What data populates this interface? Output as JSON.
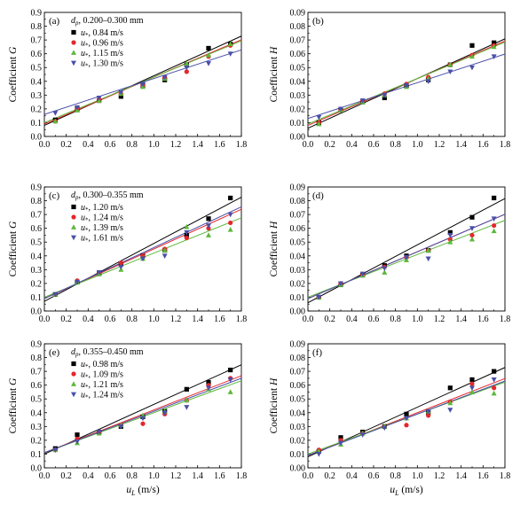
{
  "x_axis_label": "u_L (m/s)",
  "x_axis_label_main": "u",
  "x_axis_label_sub": "L",
  "x_axis_label_unit": " (m/s)",
  "y_label_G": "Coefficient G",
  "y_label_H": "Coefficient H",
  "colors": [
    "#000000",
    "#e5262b",
    "#5cb83b",
    "#4a4fa8"
  ],
  "marker_shapes": [
    "square",
    "circle",
    "triangle-up",
    "triangle-down"
  ],
  "chart_data": [
    {
      "type": "scatter",
      "panel": "(a)",
      "kind": "G",
      "title_prefix": "d",
      "title_sub": "p",
      "title_text": ", 0.200–0.300 mm",
      "xlabel": "",
      "ylabel": "Coefficient G",
      "xlim": [
        0.0,
        1.8
      ],
      "ylim": [
        0.0,
        0.9
      ],
      "xticks": [
        "0.0",
        "0.2",
        "0.4",
        "0.6",
        "0.8",
        "1.0",
        "1.2",
        "1.4",
        "1.6",
        "1.8"
      ],
      "yticks": [
        "0.0",
        "0.1",
        "0.2",
        "0.3",
        "0.4",
        "0.5",
        "0.6",
        "0.7",
        "0.8",
        "0.9"
      ],
      "x": [
        0.1,
        0.3,
        0.5,
        0.7,
        0.9,
        1.1,
        1.3,
        1.5,
        1.7
      ],
      "legend": "top-left",
      "series": [
        {
          "name": "0.84 m/s",
          "values": [
            0.12,
            0.2,
            0.26,
            0.29,
            0.37,
            0.41,
            0.52,
            0.64,
            0.67
          ],
          "fit": [
            0.08,
            0.36
          ]
        },
        {
          "name": "0.96 m/s",
          "values": [
            0.11,
            0.2,
            0.27,
            0.31,
            0.37,
            0.43,
            0.47,
            0.58,
            0.66
          ],
          "fit": [
            0.09,
            0.34
          ]
        },
        {
          "name": "1.15 m/s",
          "values": [
            0.11,
            0.19,
            0.26,
            0.31,
            0.36,
            0.42,
            0.53,
            0.59,
            0.67
          ],
          "fit": [
            0.1,
            0.33
          ]
        },
        {
          "name": "1.30 m/s",
          "values": [
            0.17,
            0.21,
            0.28,
            0.32,
            0.38,
            0.43,
            0.5,
            0.53,
            0.6
          ],
          "fit": [
            0.16,
            0.26
          ]
        }
      ]
    },
    {
      "type": "scatter",
      "panel": "(b)",
      "kind": "H",
      "xlabel": "",
      "ylabel": "Coefficient H",
      "xlim": [
        0.0,
        1.8
      ],
      "ylim": [
        0.0,
        0.09
      ],
      "xticks": [
        "0.0",
        "0.2",
        "0.4",
        "0.6",
        "0.8",
        "1.0",
        "1.2",
        "1.4",
        "1.6",
        "1.8"
      ],
      "yticks": [
        "0.00",
        "0.01",
        "0.02",
        "0.03",
        "0.04",
        "0.05",
        "0.06",
        "0.07",
        "0.08",
        "0.09"
      ],
      "x": [
        0.1,
        0.3,
        0.5,
        0.7,
        0.9,
        1.1,
        1.3,
        1.5,
        1.7
      ],
      "series": [
        {
          "values": [
            0.01,
            0.019,
            0.025,
            0.028,
            0.037,
            0.041,
            0.052,
            0.066,
            0.068
          ],
          "fit": [
            0.006,
            0.036
          ]
        },
        {
          "values": [
            0.01,
            0.019,
            0.026,
            0.031,
            0.038,
            0.043,
            0.052,
            0.059,
            0.066
          ],
          "fit": [
            0.008,
            0.034
          ]
        },
        {
          "values": [
            0.009,
            0.019,
            0.025,
            0.03,
            0.036,
            0.042,
            0.052,
            0.058,
            0.065
          ],
          "fit": [
            0.009,
            0.033
          ]
        },
        {
          "values": [
            0.014,
            0.02,
            0.026,
            0.03,
            0.037,
            0.04,
            0.047,
            0.05,
            0.058
          ],
          "fit": [
            0.013,
            0.026
          ]
        }
      ]
    },
    {
      "type": "scatter",
      "panel": "(c)",
      "kind": "G",
      "title_prefix": "d",
      "title_sub": "p",
      "title_text": ", 0.300–0.355 mm",
      "xlabel": "",
      "ylabel": "Coefficient G",
      "xlim": [
        0.0,
        1.8
      ],
      "ylim": [
        0.0,
        0.9
      ],
      "xticks": [
        "0.0",
        "0.2",
        "0.4",
        "0.6",
        "0.8",
        "1.0",
        "1.2",
        "1.4",
        "1.6",
        "1.8"
      ],
      "yticks": [
        "0.0",
        "0.1",
        "0.2",
        "0.3",
        "0.4",
        "0.5",
        "0.6",
        "0.7",
        "0.8",
        "0.9"
      ],
      "x": [
        0.1,
        0.3,
        0.5,
        0.7,
        0.9,
        1.1,
        1.3,
        1.5,
        1.7
      ],
      "legend": "top-left",
      "series": [
        {
          "name": "1.20 m/s",
          "values": [
            0.12,
            0.21,
            0.27,
            0.34,
            0.4,
            0.44,
            0.55,
            0.67,
            0.82
          ],
          "fit": [
            0.07,
            0.42
          ]
        },
        {
          "name": "1.24 m/s",
          "values": [
            0.12,
            0.22,
            0.28,
            0.35,
            0.4,
            0.45,
            0.53,
            0.6,
            0.64
          ],
          "fit": [
            0.09,
            0.36
          ]
        },
        {
          "name": "1.39 m/s",
          "values": [
            0.12,
            0.21,
            0.27,
            0.3,
            0.38,
            0.44,
            0.61,
            0.55,
            0.59
          ],
          "fit": [
            0.1,
            0.32
          ]
        },
        {
          "name": "1.61 m/s",
          "values": [
            0.12,
            0.21,
            0.28,
            0.32,
            0.38,
            0.4,
            0.57,
            0.62,
            0.7
          ],
          "fit": [
            0.09,
            0.37
          ]
        }
      ]
    },
    {
      "type": "scatter",
      "panel": "(d)",
      "kind": "H",
      "xlabel": "",
      "ylabel": "Coefficient H",
      "xlim": [
        0.0,
        1.8
      ],
      "ylim": [
        0.0,
        0.09
      ],
      "xticks": [
        "0.0",
        "0.2",
        "0.4",
        "0.6",
        "0.8",
        "1.0",
        "1.2",
        "1.4",
        "1.6",
        "1.8"
      ],
      "yticks": [
        "0.00",
        "0.01",
        "0.02",
        "0.03",
        "0.04",
        "0.05",
        "0.06",
        "0.07",
        "0.08",
        "0.09"
      ],
      "x": [
        0.1,
        0.3,
        0.5,
        0.7,
        0.9,
        1.1,
        1.3,
        1.5,
        1.7
      ],
      "series": [
        {
          "values": [
            0.01,
            0.019,
            0.026,
            0.033,
            0.04,
            0.044,
            0.057,
            0.068,
            0.082
          ],
          "fit": [
            0.006,
            0.042
          ]
        },
        {
          "values": [
            0.01,
            0.02,
            0.026,
            0.032,
            0.039,
            0.044,
            0.052,
            0.055,
            0.062
          ],
          "fit": [
            0.009,
            0.034
          ]
        },
        {
          "values": [
            0.01,
            0.019,
            0.026,
            0.028,
            0.037,
            0.044,
            0.05,
            0.052,
            0.058
          ],
          "fit": [
            0.01,
            0.031
          ]
        },
        {
          "values": [
            0.01,
            0.02,
            0.027,
            0.031,
            0.039,
            0.038,
            0.055,
            0.06,
            0.067
          ],
          "fit": [
            0.009,
            0.034
          ]
        }
      ]
    },
    {
      "type": "scatter",
      "panel": "(e)",
      "kind": "G",
      "title_prefix": "d",
      "title_sub": "p",
      "title_text": ", 0.355–0.450 mm",
      "xlabel": "u_L (m/s)",
      "ylabel": "Coefficient G",
      "xlim": [
        0.0,
        1.8
      ],
      "ylim": [
        0.0,
        0.9
      ],
      "xticks": [
        "0.0",
        "0.2",
        "0.4",
        "0.6",
        "0.8",
        "1.0",
        "1.2",
        "1.4",
        "1.6",
        "1.8"
      ],
      "yticks": [
        "0.0",
        "0.1",
        "0.2",
        "0.3",
        "0.4",
        "0.5",
        "0.6",
        "0.7",
        "0.8",
        "0.9"
      ],
      "x": [
        0.1,
        0.3,
        0.5,
        0.7,
        0.9,
        1.1,
        1.3,
        1.5,
        1.7
      ],
      "legend": "top-left",
      "series": [
        {
          "name": "0.98 m/s",
          "values": [
            0.14,
            0.24,
            0.26,
            0.3,
            0.37,
            0.41,
            0.57,
            0.62,
            0.71
          ],
          "fit": [
            0.1,
            0.36
          ]
        },
        {
          "name": "1.09 m/s",
          "values": [
            0.13,
            0.21,
            0.26,
            0.31,
            0.32,
            0.39,
            0.49,
            0.6,
            0.65
          ],
          "fit": [
            0.11,
            0.31
          ]
        },
        {
          "name": "1.21 m/s",
          "values": [
            0.13,
            0.18,
            0.25,
            0.31,
            0.38,
            0.41,
            0.49,
            0.57,
            0.55
          ],
          "fit": [
            0.11,
            0.29
          ]
        },
        {
          "name": "1.24 m/s",
          "values": [
            0.13,
            0.19,
            0.26,
            0.3,
            0.36,
            0.4,
            0.44,
            0.58,
            0.64
          ],
          "fit": [
            0.11,
            0.3
          ]
        }
      ]
    },
    {
      "type": "scatter",
      "panel": "(f)",
      "kind": "H",
      "xlabel": "u_L (m/s)",
      "ylabel": "Coefficient H",
      "xlim": [
        0.0,
        1.8
      ],
      "ylim": [
        0.0,
        0.09
      ],
      "xticks": [
        "0.0",
        "0.2",
        "0.4",
        "0.6",
        "0.8",
        "1.0",
        "1.2",
        "1.4",
        "1.6",
        "1.8"
      ],
      "yticks": [
        "0.00",
        "0.01",
        "0.02",
        "0.03",
        "0.04",
        "0.05",
        "0.06",
        "0.07",
        "0.08",
        "0.09"
      ],
      "x": [
        0.1,
        0.3,
        0.5,
        0.7,
        0.9,
        1.1,
        1.3,
        1.5,
        1.7
      ],
      "series": [
        {
          "values": [
            0.012,
            0.022,
            0.026,
            0.03,
            0.039,
            0.04,
            0.058,
            0.064,
            0.07
          ],
          "fit": [
            0.008,
            0.036
          ]
        },
        {
          "values": [
            0.013,
            0.02,
            0.025,
            0.03,
            0.031,
            0.038,
            0.048,
            0.061,
            0.058
          ],
          "fit": [
            0.009,
            0.031
          ]
        },
        {
          "values": [
            0.012,
            0.017,
            0.025,
            0.03,
            0.036,
            0.041,
            0.047,
            0.055,
            0.054
          ],
          "fit": [
            0.01,
            0.029
          ]
        },
        {
          "values": [
            0.01,
            0.018,
            0.024,
            0.029,
            0.036,
            0.041,
            0.042,
            0.058,
            0.064
          ],
          "fit": [
            0.009,
            0.03
          ]
        }
      ]
    }
  ]
}
